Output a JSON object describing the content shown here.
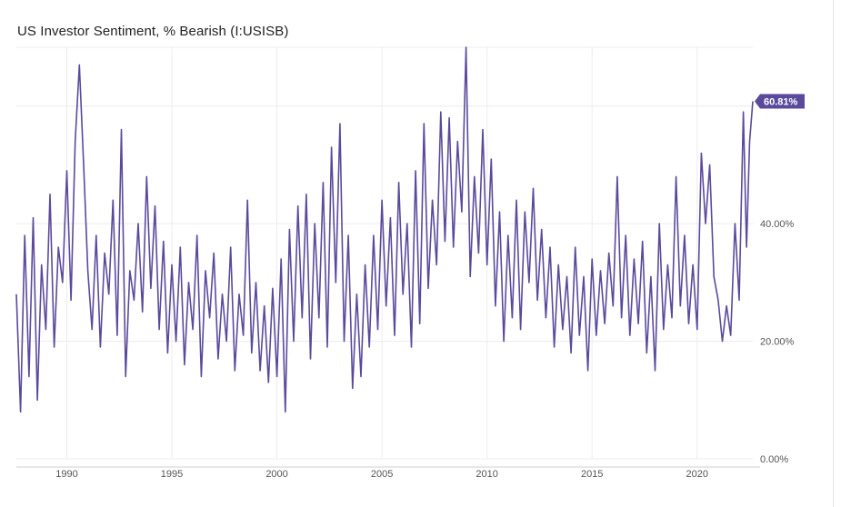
{
  "header": {
    "title": "US Investor Sentiment, % Bearish (I:USISB)"
  },
  "chart_data": {
    "type": "line",
    "title": "US Investor Sentiment, % Bearish (I:USISB)",
    "xlabel": "",
    "ylabel": "",
    "x_range": [
      1987.6,
      2022.65
    ],
    "ylim": [
      0,
      70
    ],
    "x_ticks": [
      1990,
      1995,
      2000,
      2005,
      2010,
      2015,
      2020
    ],
    "x_tick_labels": [
      "1990",
      "1995",
      "2000",
      "2005",
      "2010",
      "2015",
      "2020"
    ],
    "y_ticks": [
      0,
      20,
      40,
      60
    ],
    "y_tick_labels": [
      "0.00%",
      "20.00%",
      "40.00%",
      ""
    ],
    "grid": {
      "vertical": true,
      "horizontal": true
    },
    "last_value_label": "60.81%",
    "colors": {
      "line": "#5b4a9c",
      "badge": "#5b4a9c",
      "grid": "#ececec"
    },
    "series": [
      {
        "values": [
          [
            1987.6,
            28
          ],
          [
            1987.8,
            8
          ],
          [
            1988.0,
            38
          ],
          [
            1988.2,
            14
          ],
          [
            1988.4,
            41
          ],
          [
            1988.6,
            10
          ],
          [
            1988.8,
            33
          ],
          [
            1989.0,
            22
          ],
          [
            1989.2,
            45
          ],
          [
            1989.4,
            19
          ],
          [
            1989.6,
            36
          ],
          [
            1989.8,
            30
          ],
          [
            1990.0,
            49
          ],
          [
            1990.2,
            27
          ],
          [
            1990.4,
            54
          ],
          [
            1990.6,
            67
          ],
          [
            1990.8,
            50
          ],
          [
            1991.0,
            32
          ],
          [
            1991.2,
            22
          ],
          [
            1991.4,
            38
          ],
          [
            1991.6,
            19
          ],
          [
            1991.8,
            35
          ],
          [
            1992.0,
            28
          ],
          [
            1992.2,
            44
          ],
          [
            1992.4,
            21
          ],
          [
            1992.6,
            56
          ],
          [
            1992.8,
            14
          ],
          [
            1993.0,
            32
          ],
          [
            1993.2,
            27
          ],
          [
            1993.4,
            40
          ],
          [
            1993.6,
            25
          ],
          [
            1993.8,
            48
          ],
          [
            1994.0,
            29
          ],
          [
            1994.2,
            43
          ],
          [
            1994.4,
            22
          ],
          [
            1994.6,
            37
          ],
          [
            1994.8,
            18
          ],
          [
            1995.0,
            33
          ],
          [
            1995.2,
            20
          ],
          [
            1995.4,
            36
          ],
          [
            1995.6,
            16
          ],
          [
            1995.8,
            30
          ],
          [
            1996.0,
            22
          ],
          [
            1996.2,
            38
          ],
          [
            1996.4,
            14
          ],
          [
            1996.6,
            32
          ],
          [
            1996.8,
            24
          ],
          [
            1997.0,
            35
          ],
          [
            1997.2,
            17
          ],
          [
            1997.4,
            28
          ],
          [
            1997.6,
            20
          ],
          [
            1997.8,
            36
          ],
          [
            1998.0,
            15
          ],
          [
            1998.2,
            28
          ],
          [
            1998.4,
            21
          ],
          [
            1998.6,
            44
          ],
          [
            1998.8,
            18
          ],
          [
            1999.0,
            30
          ],
          [
            1999.2,
            15
          ],
          [
            1999.4,
            26
          ],
          [
            1999.6,
            13
          ],
          [
            1999.8,
            29
          ],
          [
            2000.0,
            14
          ],
          [
            2000.2,
            34
          ],
          [
            2000.4,
            8
          ],
          [
            2000.6,
            39
          ],
          [
            2000.8,
            20
          ],
          [
            2001.0,
            43
          ],
          [
            2001.2,
            24
          ],
          [
            2001.4,
            45
          ],
          [
            2001.6,
            17
          ],
          [
            2001.8,
            40
          ],
          [
            2002.0,
            24
          ],
          [
            2002.2,
            47
          ],
          [
            2002.4,
            19
          ],
          [
            2002.6,
            53
          ],
          [
            2002.8,
            30
          ],
          [
            2003.0,
            57
          ],
          [
            2003.2,
            20
          ],
          [
            2003.4,
            38
          ],
          [
            2003.6,
            12
          ],
          [
            2003.8,
            28
          ],
          [
            2004.0,
            14
          ],
          [
            2004.2,
            33
          ],
          [
            2004.4,
            19
          ],
          [
            2004.6,
            38
          ],
          [
            2004.8,
            22
          ],
          [
            2005.0,
            44
          ],
          [
            2005.2,
            26
          ],
          [
            2005.4,
            41
          ],
          [
            2005.6,
            21
          ],
          [
            2005.8,
            47
          ],
          [
            2006.0,
            28
          ],
          [
            2006.2,
            40
          ],
          [
            2006.4,
            19
          ],
          [
            2006.6,
            49
          ],
          [
            2006.8,
            23
          ],
          [
            2007.0,
            57
          ],
          [
            2007.2,
            29
          ],
          [
            2007.4,
            44
          ],
          [
            2007.6,
            33
          ],
          [
            2007.8,
            59
          ],
          [
            2008.0,
            37
          ],
          [
            2008.2,
            58
          ],
          [
            2008.4,
            36
          ],
          [
            2008.6,
            54
          ],
          [
            2008.8,
            42
          ],
          [
            2009.0,
            70
          ],
          [
            2009.2,
            31
          ],
          [
            2009.4,
            48
          ],
          [
            2009.6,
            35
          ],
          [
            2009.8,
            56
          ],
          [
            2010.0,
            33
          ],
          [
            2010.2,
            51
          ],
          [
            2010.4,
            26
          ],
          [
            2010.6,
            42
          ],
          [
            2010.8,
            20
          ],
          [
            2011.0,
            38
          ],
          [
            2011.2,
            24
          ],
          [
            2011.4,
            44
          ],
          [
            2011.6,
            22
          ],
          [
            2011.8,
            42
          ],
          [
            2012.0,
            30
          ],
          [
            2012.2,
            46
          ],
          [
            2012.4,
            27
          ],
          [
            2012.6,
            39
          ],
          [
            2012.8,
            24
          ],
          [
            2013.0,
            36
          ],
          [
            2013.2,
            19
          ],
          [
            2013.4,
            33
          ],
          [
            2013.6,
            22
          ],
          [
            2013.8,
            31
          ],
          [
            2014.0,
            18
          ],
          [
            2014.2,
            36
          ],
          [
            2014.4,
            21
          ],
          [
            2014.6,
            31
          ],
          [
            2014.8,
            15
          ],
          [
            2015.0,
            34
          ],
          [
            2015.2,
            21
          ],
          [
            2015.4,
            32
          ],
          [
            2015.6,
            23
          ],
          [
            2015.8,
            35
          ],
          [
            2016.0,
            26
          ],
          [
            2016.2,
            48
          ],
          [
            2016.4,
            24
          ],
          [
            2016.6,
            38
          ],
          [
            2016.8,
            21
          ],
          [
            2017.0,
            34
          ],
          [
            2017.2,
            23
          ],
          [
            2017.4,
            37
          ],
          [
            2017.6,
            18
          ],
          [
            2017.8,
            31
          ],
          [
            2018.0,
            15
          ],
          [
            2018.2,
            40
          ],
          [
            2018.4,
            22
          ],
          [
            2018.6,
            33
          ],
          [
            2018.8,
            24
          ],
          [
            2019.0,
            48
          ],
          [
            2019.2,
            26
          ],
          [
            2019.4,
            38
          ],
          [
            2019.6,
            23
          ],
          [
            2019.8,
            33
          ],
          [
            2020.0,
            22
          ],
          [
            2020.2,
            52
          ],
          [
            2020.4,
            40
          ],
          [
            2020.6,
            50
          ],
          [
            2020.8,
            31
          ],
          [
            2021.0,
            27
          ],
          [
            2021.2,
            20
          ],
          [
            2021.4,
            26
          ],
          [
            2021.6,
            21
          ],
          [
            2021.8,
            40
          ],
          [
            2022.0,
            27
          ],
          [
            2022.2,
            59
          ],
          [
            2022.35,
            36
          ],
          [
            2022.5,
            54
          ],
          [
            2022.65,
            60.81
          ]
        ]
      }
    ]
  }
}
